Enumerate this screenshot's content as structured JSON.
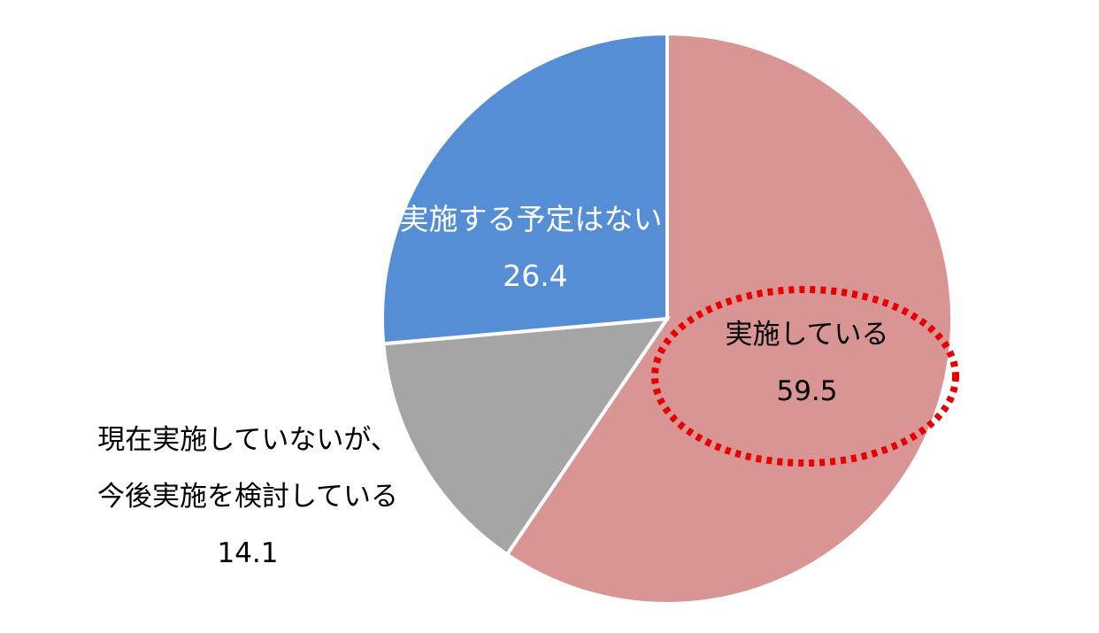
{
  "chart_data": {
    "type": "pie",
    "categories": [
      "実施している",
      "現在実施していないが、今後実施を検討している",
      "実施する予定はない"
    ],
    "values": [
      59.5,
      14.1,
      26.4
    ],
    "colors": [
      "#d99594",
      "#a5a5a5",
      "#558ed5"
    ]
  }
}
